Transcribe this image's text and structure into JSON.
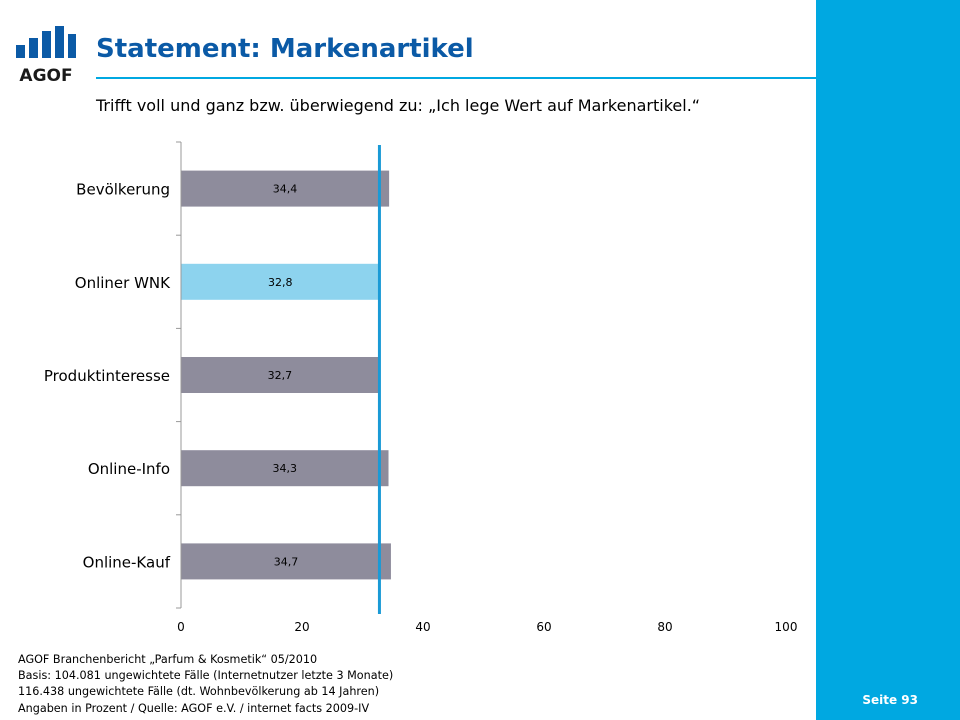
{
  "page": {
    "title": "Statement: Markenartikel",
    "subtitle": "Trifft voll und ganz bzw. überwiegend zu: „Ich lege Wert auf Markenartikel.“",
    "logo_text": "AGOF",
    "page_number": "Seite 93",
    "footer": [
      "AGOF Branchenbericht „Parfum & Kosmetik“ 05/2010",
      "Basis: 104.081 ungewichtete Fälle (Internetnutzer letzte 3 Monate)",
      "116.438 ungewichtete Fälle (dt. Wohnbevölkerung ab 14 Jahren)",
      "Angaben in Prozent / Quelle: AGOF e.V. / internet facts 2009-IV"
    ]
  },
  "colors": {
    "accent": "#00a8e1",
    "title": "#0b5aa6",
    "bar_default": "#8e8c9c",
    "bar_highlight": "#8dd3ee",
    "reference_line": "#1a9ad6"
  },
  "chart_data": {
    "type": "bar",
    "orientation": "horizontal",
    "categories": [
      "Bevölkerung",
      "Onliner WNK",
      "Produktinteresse",
      "Online-Info",
      "Online-Kauf"
    ],
    "values": [
      34.4,
      32.8,
      32.7,
      34.3,
      34.7
    ],
    "value_labels": [
      "34,4",
      "32,8",
      "32,7",
      "34,3",
      "34,7"
    ],
    "highlight_index": 1,
    "xlim": [
      0,
      100
    ],
    "xticks": [
      0,
      20,
      40,
      60,
      80,
      100
    ],
    "reference_value": 32.8,
    "grid": false,
    "legend": "none"
  }
}
